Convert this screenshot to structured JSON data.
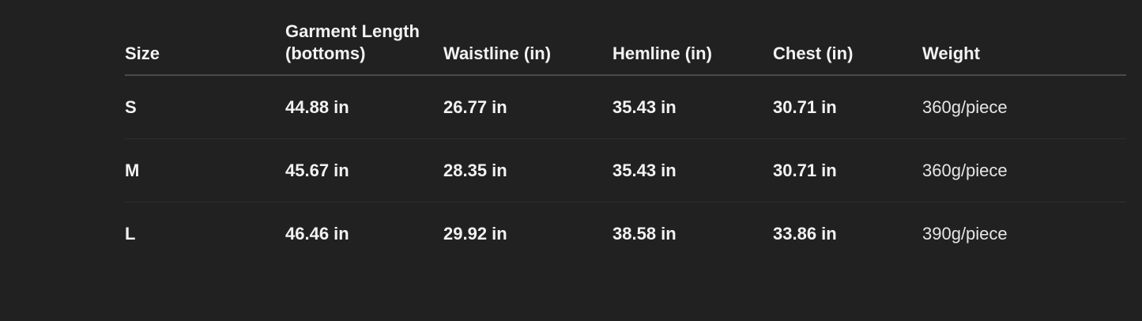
{
  "table": {
    "headers": [
      "Size",
      "Garment Length (bottoms)",
      "Waistline (in)",
      "Hemline (in)",
      "Chest (in)",
      "Weight"
    ],
    "rows": [
      [
        "S",
        "44.88 in",
        "26.77 in",
        "35.43 in",
        "30.71 in",
        "360g/piece"
      ],
      [
        "M",
        "45.67 in",
        "28.35 in",
        "35.43 in",
        "30.71 in",
        "360g/piece"
      ],
      [
        "L",
        "46.46 in",
        "29.92 in",
        "38.58 in",
        "33.86 in",
        "390g/piece"
      ]
    ]
  }
}
